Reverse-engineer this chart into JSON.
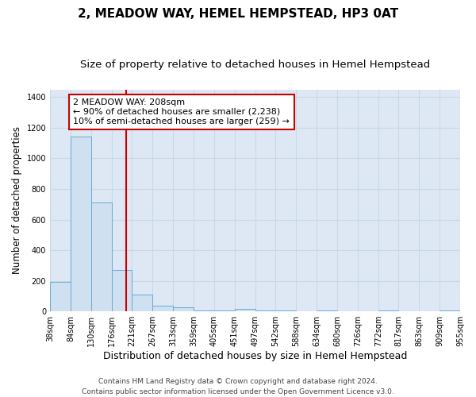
{
  "title": "2, MEADOW WAY, HEMEL HEMPSTEAD, HP3 0AT",
  "subtitle": "Size of property relative to detached houses in Hemel Hempstead",
  "xlabel": "Distribution of detached houses by size in Hemel Hempstead",
  "ylabel": "Number of detached properties",
  "bin_edges": [
    38,
    84,
    130,
    176,
    221,
    267,
    313,
    359,
    405,
    451,
    497,
    542,
    588,
    634,
    680,
    726,
    772,
    817,
    863,
    909,
    955
  ],
  "bin_heights": [
    193,
    1143,
    714,
    270,
    112,
    35,
    26,
    8,
    8,
    15,
    6,
    6,
    0,
    6,
    0,
    0,
    6,
    0,
    0,
    6
  ],
  "bar_color": "#cfe0f0",
  "bar_edge_color": "#6aaad4",
  "grid_color": "#c8d8ea",
  "plot_bg_color": "#dde8f4",
  "figure_bg_color": "#ffffff",
  "vline_x": 208,
  "vline_color": "#cc0000",
  "annotation_text": "2 MEADOW WAY: 208sqm\n← 90% of detached houses are smaller (2,238)\n10% of semi-detached houses are larger (259) →",
  "annotation_box_color": "#ffffff",
  "annotation_box_edge": "#cc0000",
  "ylim": [
    0,
    1450
  ],
  "yticks": [
    0,
    200,
    400,
    600,
    800,
    1000,
    1200,
    1400
  ],
  "tick_labels": [
    "38sqm",
    "84sqm",
    "130sqm",
    "176sqm",
    "221sqm",
    "267sqm",
    "313sqm",
    "359sqm",
    "405sqm",
    "451sqm",
    "497sqm",
    "542sqm",
    "588sqm",
    "634sqm",
    "680sqm",
    "726sqm",
    "772sqm",
    "817sqm",
    "863sqm",
    "909sqm",
    "955sqm"
  ],
  "footer_text": "Contains HM Land Registry data © Crown copyright and database right 2024.\nContains public sector information licensed under the Open Government Licence v3.0.",
  "title_fontsize": 11,
  "subtitle_fontsize": 9.5,
  "xlabel_fontsize": 9,
  "ylabel_fontsize": 8.5,
  "tick_fontsize": 7,
  "annotation_fontsize": 8,
  "footer_fontsize": 6.5
}
